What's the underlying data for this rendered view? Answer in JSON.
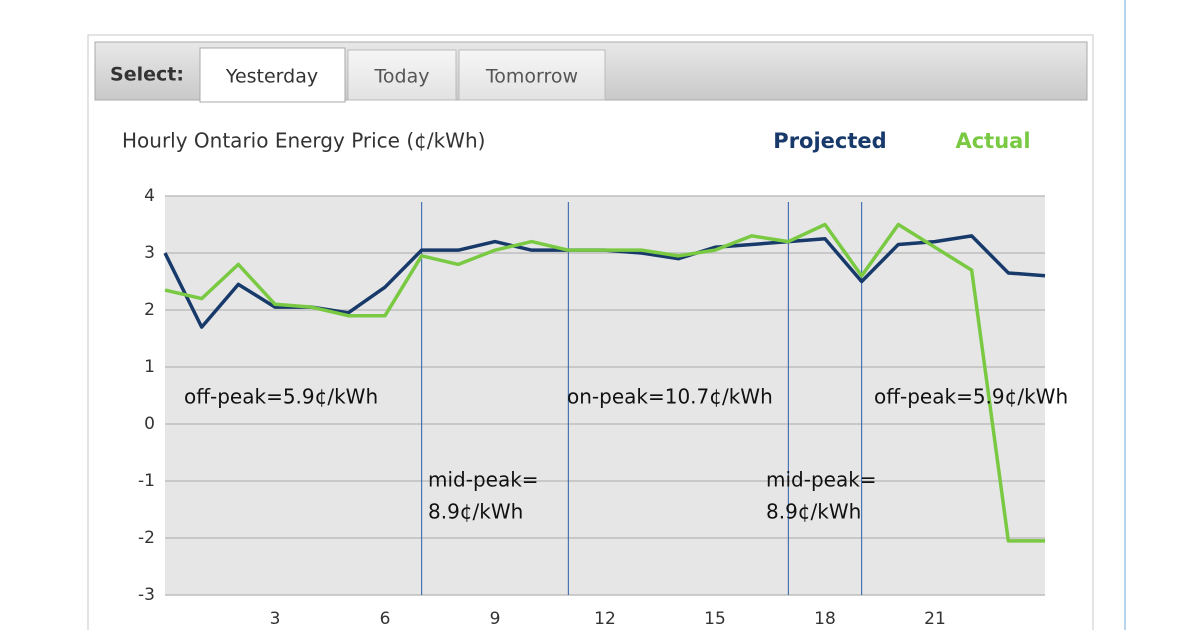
{
  "select_label": "Select:",
  "tabs": [
    "Yesterday",
    "Today",
    "Tomorrow"
  ],
  "chart_data": {
    "type": "line",
    "title": "Hourly Ontario Energy Price (¢/kWh)",
    "x": [
      0,
      1,
      2,
      3,
      4,
      5,
      6,
      7,
      8,
      9,
      10,
      11,
      12,
      13,
      14,
      15,
      16,
      17,
      18,
      19,
      20,
      21,
      22,
      23,
      24
    ],
    "series": [
      {
        "name": "Projected",
        "color": "#183a6b",
        "values": [
          3.0,
          1.7,
          2.45,
          2.05,
          2.05,
          1.95,
          2.4,
          3.05,
          3.05,
          3.2,
          3.05,
          3.05,
          3.05,
          3.0,
          2.9,
          3.1,
          3.15,
          3.2,
          3.25,
          2.5,
          3.15,
          3.2,
          3.3,
          2.65,
          2.6
        ]
      },
      {
        "name": "Actual",
        "color": "#7ac943",
        "values": [
          2.35,
          2.2,
          2.8,
          2.1,
          2.05,
          1.9,
          1.9,
          2.95,
          2.8,
          3.05,
          3.2,
          3.05,
          3.05,
          3.05,
          2.95,
          3.05,
          3.3,
          3.2,
          3.5,
          2.6,
          3.5,
          3.1,
          2.7,
          -2.05,
          -2.05
        ]
      }
    ],
    "xlim": [
      0,
      24
    ],
    "xticks": [
      3,
      6,
      9,
      12,
      15,
      18,
      21
    ],
    "ylim": [
      -3,
      4
    ],
    "yticks": [
      -3,
      -2,
      -1,
      0,
      1,
      2,
      3,
      4
    ],
    "grid": true,
    "period_boundaries": [
      7,
      11,
      17,
      19
    ],
    "annotations": [
      [
        "off-peak=5.9¢/kWh"
      ],
      [
        "mid-peak=",
        "8.9¢/kWh"
      ],
      [
        "on-peak=10.7¢/kWh"
      ],
      [
        "mid-peak=",
        "8.9¢/kWh"
      ],
      [
        "off-peak=5.9¢/kWh"
      ]
    ]
  }
}
